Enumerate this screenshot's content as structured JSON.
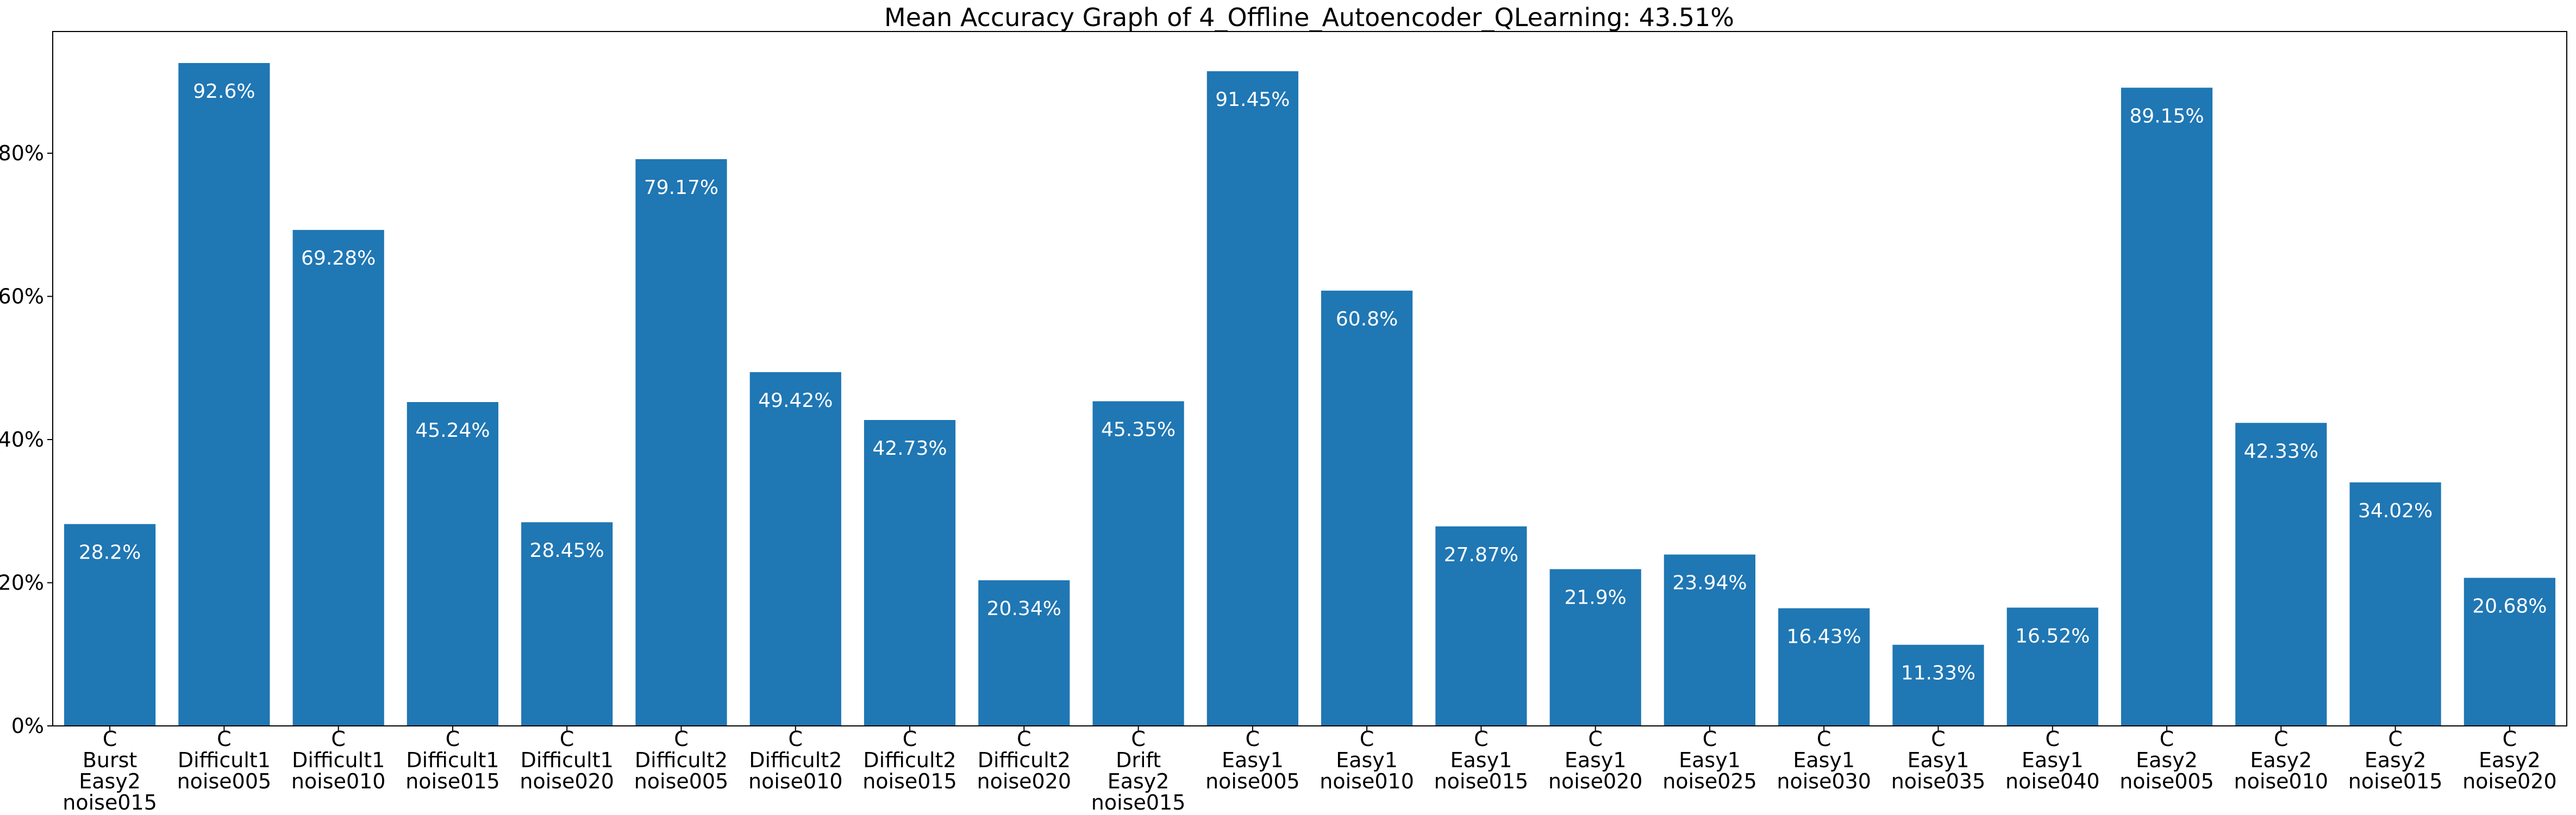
{
  "chart_data": {
    "type": "bar",
    "title": "Mean Accuracy Graph of 4_Offline_Autoencoder_QLearning: 43.51%",
    "xlabel": "",
    "ylabel": "",
    "ylim": [
      0,
      97
    ],
    "yticks": [
      "0%",
      "20%",
      "40%",
      "60%",
      "80%"
    ],
    "ytick_values": [
      0,
      20,
      40,
      60,
      80
    ],
    "grid": false,
    "bar_color": "#1f77b4",
    "label_color": "#ffffff",
    "categories": [
      [
        "C",
        "Burst",
        "Easy2",
        "noise015"
      ],
      [
        "C",
        "Difficult1",
        "noise005"
      ],
      [
        "C",
        "Difficult1",
        "noise010"
      ],
      [
        "C",
        "Difficult1",
        "noise015"
      ],
      [
        "C",
        "Difficult1",
        "noise020"
      ],
      [
        "C",
        "Difficult2",
        "noise005"
      ],
      [
        "C",
        "Difficult2",
        "noise010"
      ],
      [
        "C",
        "Difficult2",
        "noise015"
      ],
      [
        "C",
        "Difficult2",
        "noise020"
      ],
      [
        "C",
        "Drift",
        "Easy2",
        "noise015"
      ],
      [
        "C",
        "Easy1",
        "noise005"
      ],
      [
        "C",
        "Easy1",
        "noise010"
      ],
      [
        "C",
        "Easy1",
        "noise015"
      ],
      [
        "C",
        "Easy1",
        "noise020"
      ],
      [
        "C",
        "Easy1",
        "noise025"
      ],
      [
        "C",
        "Easy1",
        "noise030"
      ],
      [
        "C",
        "Easy1",
        "noise035"
      ],
      [
        "C",
        "Easy1",
        "noise040"
      ],
      [
        "C",
        "Easy2",
        "noise005"
      ],
      [
        "C",
        "Easy2",
        "noise010"
      ],
      [
        "C",
        "Easy2",
        "noise015"
      ],
      [
        "C",
        "Easy2",
        "noise020"
      ]
    ],
    "values": [
      28.2,
      92.6,
      69.28,
      45.24,
      28.45,
      79.17,
      49.42,
      42.73,
      20.34,
      45.35,
      91.45,
      60.8,
      27.87,
      21.9,
      23.94,
      16.43,
      11.33,
      16.52,
      89.15,
      42.33,
      34.02,
      20.68
    ],
    "data_labels": [
      "28.2%",
      "92.6%",
      "69.28%",
      "45.24%",
      "28.45%",
      "79.17%",
      "49.42%",
      "42.73%",
      "20.34%",
      "45.35%",
      "91.45%",
      "60.8%",
      "27.87%",
      "21.9%",
      "23.94%",
      "16.43%",
      "11.33%",
      "16.52%",
      "89.15%",
      "42.33%",
      "34.02%",
      "20.68%"
    ]
  }
}
